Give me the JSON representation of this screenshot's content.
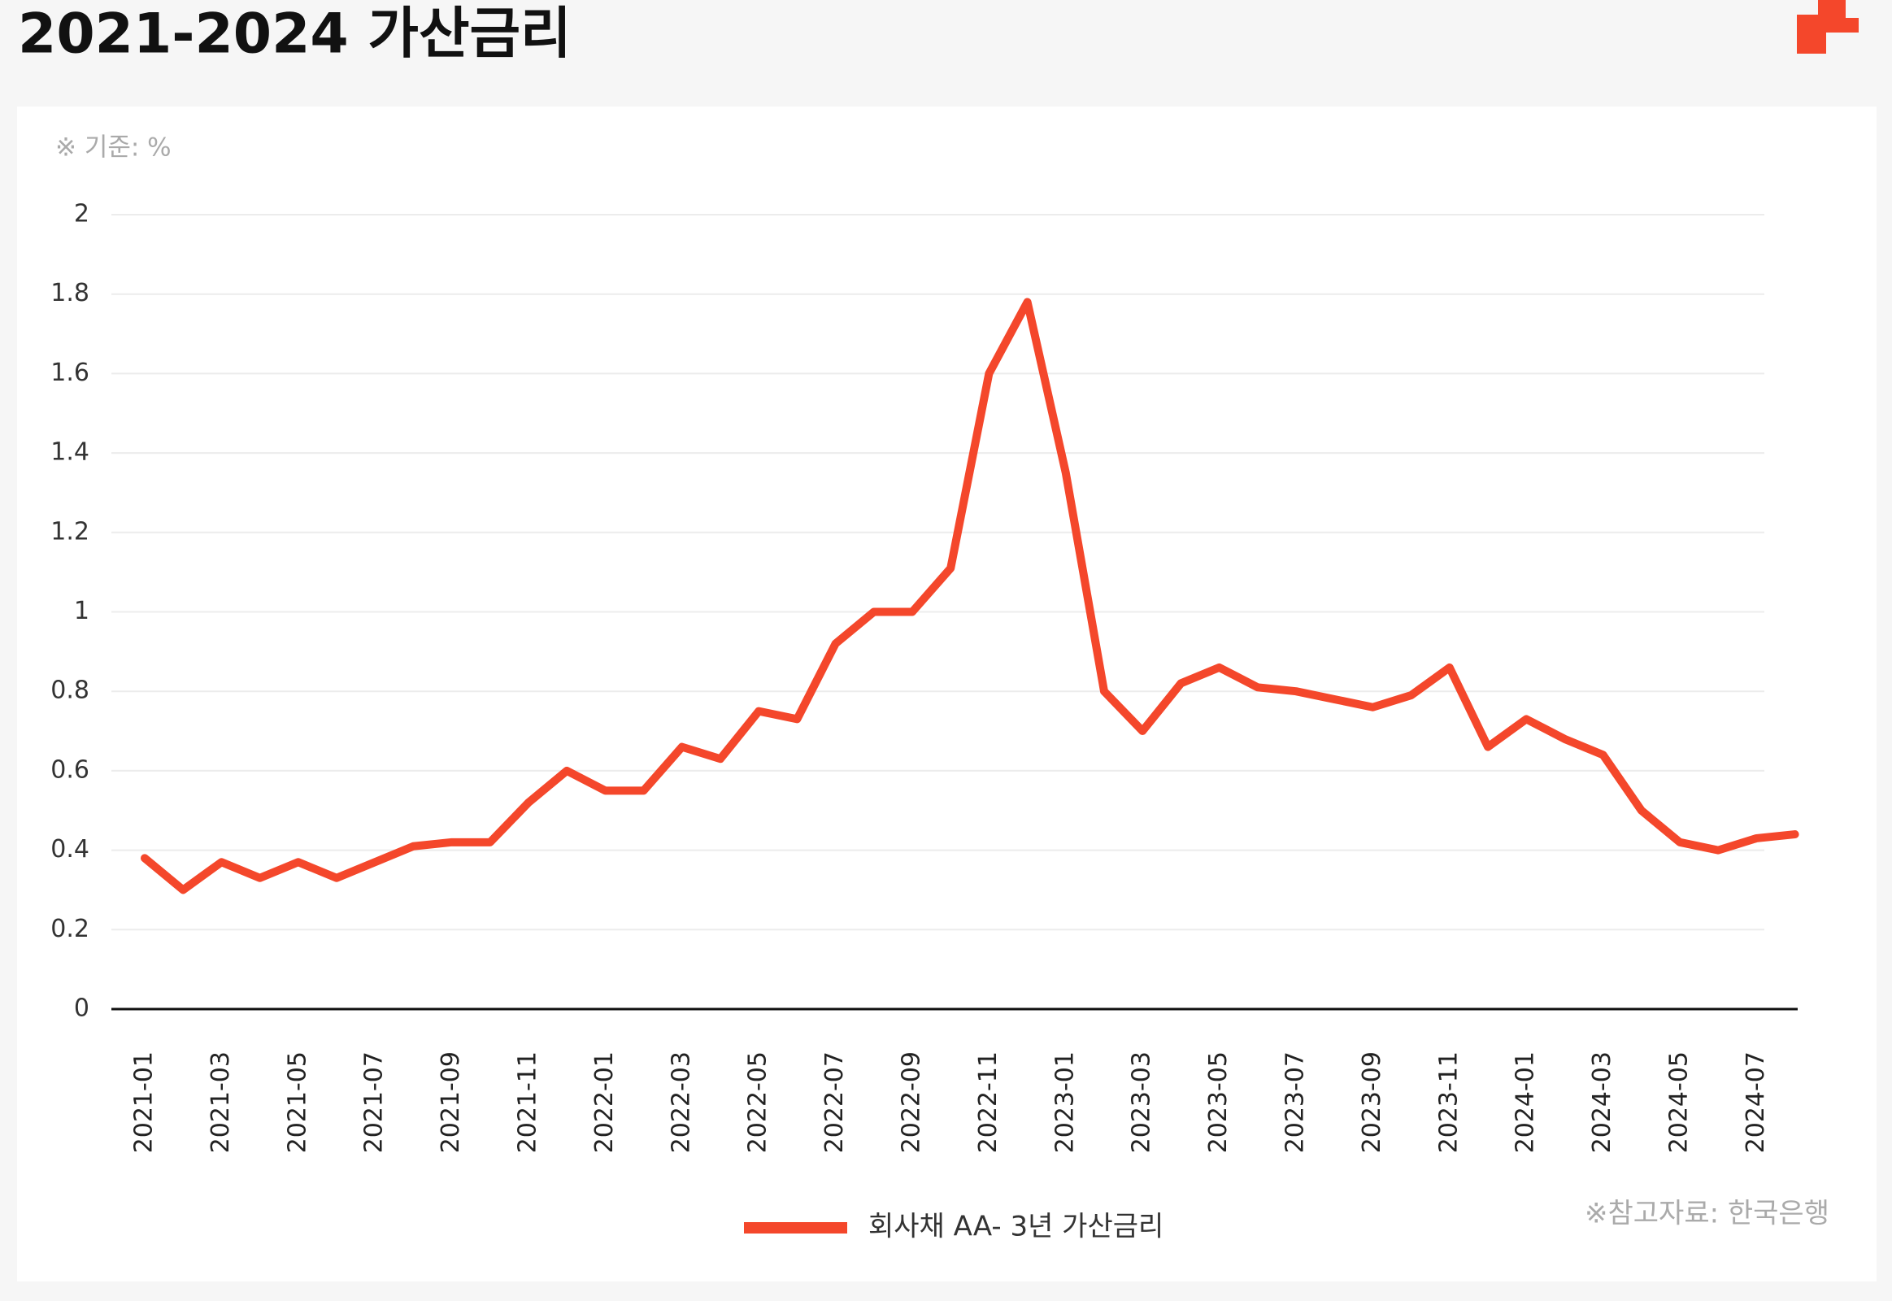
{
  "chart_data": {
    "type": "line",
    "title": "2021-2024 가산금리",
    "unit_note": "※ 기준: %",
    "source": "※참고자료: 한국은행",
    "x": [
      "2021-01",
      null,
      "2021-03",
      null,
      "2021-05",
      null,
      "2021-07",
      null,
      "2021-09",
      null,
      "2021-11",
      null,
      "2022-01",
      null,
      "2022-03",
      null,
      "2022-05",
      null,
      "2022-07",
      null,
      "2022-09",
      null,
      "2022-11",
      null,
      "2023-01",
      null,
      "2023-03",
      null,
      "2023-05",
      null,
      "2023-07",
      null,
      "2023-09",
      null,
      "2023-11",
      null,
      "2024-01",
      null,
      "2024-03",
      null,
      "2024-05",
      null,
      "2024-07",
      null
    ],
    "series": [
      {
        "name": "회사채 AA- 3년 가산금리",
        "color": "#f4472b",
        "values": [
          0.38,
          0.3,
          0.37,
          0.33,
          0.37,
          0.33,
          0.37,
          0.41,
          0.42,
          0.42,
          0.52,
          0.6,
          0.55,
          0.55,
          0.66,
          0.63,
          0.75,
          0.73,
          0.92,
          1.0,
          1.0,
          1.11,
          1.6,
          1.78,
          1.35,
          0.8,
          0.7,
          0.82,
          0.86,
          0.81,
          0.8,
          0.78,
          0.76,
          0.79,
          0.86,
          0.66,
          0.73,
          0.68,
          0.64,
          0.5,
          0.42,
          0.4,
          0.43,
          0.44
        ]
      }
    ],
    "ylim": [
      0,
      2
    ],
    "yticks": [
      0,
      0.2,
      0.4,
      0.6,
      0.8,
      1,
      1.2,
      1.4,
      1.6,
      1.8,
      2
    ],
    "grid": true
  }
}
